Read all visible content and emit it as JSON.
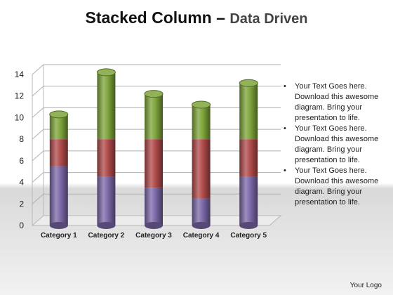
{
  "title": {
    "main": "Stacked Column",
    "dash": " – ",
    "sub": "Data Driven"
  },
  "bullets": [
    {
      "symbol": "•",
      "text": "Your Text Goes here. Download this awesome diagram. Bring your presentation to life."
    },
    {
      "symbol": "•",
      "text": "Your Text Goes here. Download this awesome diagram. Bring your presentation to life."
    },
    {
      "symbol": "•",
      "text": "Your Text Goes here. Download this awesome diagram. Bring your presentation to life."
    }
  ],
  "logo": "Your Logo",
  "chart_data": {
    "type": "bar",
    "stacked": true,
    "categories": [
      "Category 1",
      "Category 2",
      "Category 3",
      "Category 4",
      "Category 5"
    ],
    "series": [
      {
        "values": [
          5.5,
          4.5,
          3.5,
          2.5,
          4.5
        ],
        "color": "#7b68a8"
      },
      {
        "values": [
          2.5,
          3.5,
          4.5,
          5.5,
          3.5
        ],
        "color": "#b04a4a"
      },
      {
        "values": [
          2.3,
          6.2,
          4.2,
          3.2,
          5.2
        ],
        "color": "#7ea43a"
      }
    ],
    "ylim": [
      0,
      14
    ],
    "yticks": [
      0,
      2,
      4,
      6,
      8,
      10,
      12,
      14
    ],
    "grid": true,
    "legend": "none"
  }
}
